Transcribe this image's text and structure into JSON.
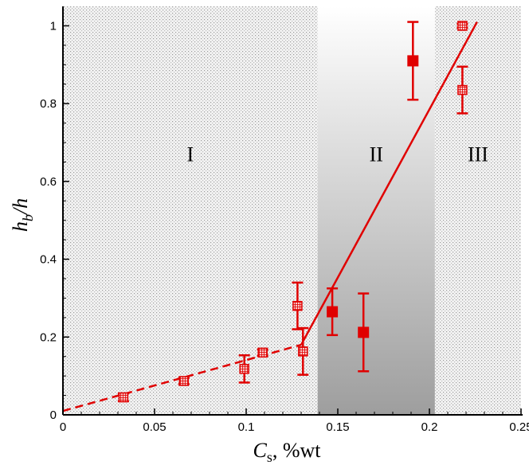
{
  "chart_data": {
    "type": "scatter",
    "xlabel": "C_s, %wt",
    "ylabel": "h_b/h",
    "xlabel_main": "C",
    "xlabel_sub": "s",
    "xlabel_rest": ", %wt",
    "ylabel_main": "h",
    "ylabel_sub": "b",
    "ylabel_rest": "/h",
    "xlim": [
      0,
      0.25
    ],
    "ylim": [
      0,
      1.05
    ],
    "x_ticks": [
      0,
      0.05,
      0.1,
      0.15,
      0.2,
      0.25
    ],
    "x_tick_labels": [
      "0",
      "0.05",
      "0.1",
      "0.15",
      "0.2",
      "0.25"
    ],
    "y_ticks": [
      0,
      0.2,
      0.4,
      0.6,
      0.8,
      1.0
    ],
    "y_tick_labels": [
      "0",
      "0.2",
      "0.4",
      "0.6",
      "0.8",
      "1"
    ],
    "regions": [
      {
        "label": "I",
        "x_start": 0,
        "x_end": 0.139,
        "fill": "dotted"
      },
      {
        "label": "II",
        "x_start": 0.139,
        "x_end": 0.203,
        "fill": "gradient"
      },
      {
        "label": "III",
        "x_start": 0.203,
        "x_end": 0.25,
        "fill": "dotted"
      }
    ],
    "region_label_y": 0.67,
    "series": [
      {
        "name": "hatched markers",
        "marker": "hatched-square",
        "color": "#e00000",
        "points": [
          {
            "x": 0.033,
            "y": 0.045,
            "err": 0.01
          },
          {
            "x": 0.066,
            "y": 0.087,
            "err": 0.008
          },
          {
            "x": 0.099,
            "y": 0.118,
            "err": 0.035
          },
          {
            "x": 0.109,
            "y": 0.16,
            "err": 0.008
          },
          {
            "x": 0.128,
            "y": 0.28,
            "err": 0.06
          },
          {
            "x": 0.131,
            "y": 0.163,
            "err": 0.06
          },
          {
            "x": 0.218,
            "y": 1.0,
            "err": 0.005
          },
          {
            "x": 0.218,
            "y": 0.835,
            "err": 0.06
          }
        ]
      },
      {
        "name": "filled markers",
        "marker": "filled-square",
        "color": "#e00000",
        "points": [
          {
            "x": 0.147,
            "y": 0.265,
            "err": 0.06
          },
          {
            "x": 0.164,
            "y": 0.212,
            "err": 0.1
          },
          {
            "x": 0.191,
            "y": 0.91,
            "err": 0.1
          }
        ]
      }
    ],
    "fit_lines": [
      {
        "name": "dashed fit",
        "style": "dashed",
        "color": "#e00000",
        "x": [
          0,
          0.13
        ],
        "y": [
          0.01,
          0.18
        ]
      },
      {
        "name": "solid fit",
        "style": "solid",
        "color": "#e00000",
        "x": [
          0.13,
          0.226
        ],
        "y": [
          0.18,
          1.01
        ]
      }
    ],
    "colors": {
      "marker": "#e00000",
      "axis": "#000000"
    }
  }
}
